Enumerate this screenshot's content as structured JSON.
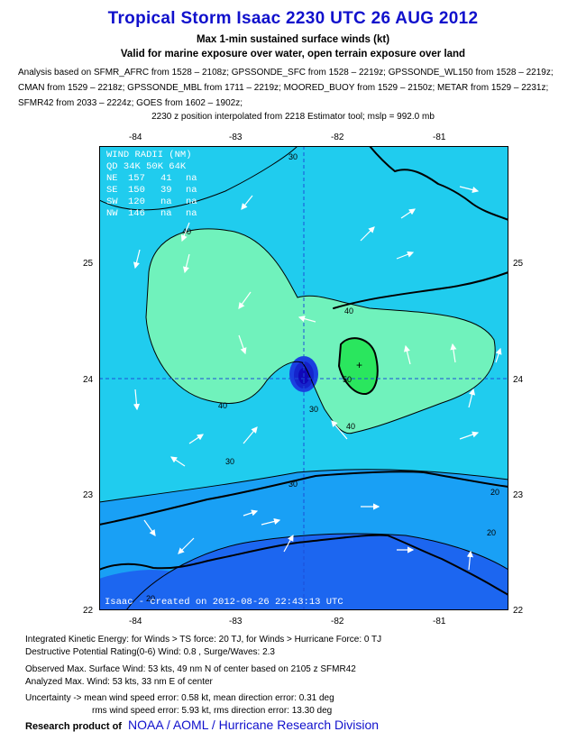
{
  "header": {
    "title": "Tropical Storm Isaac 2230 UTC 26 AUG 2012",
    "subtitle1": "Max 1-min sustained surface winds (kt)",
    "subtitle2": "Valid for marine exposure over water, open terrain exposure over land",
    "analysis_lines": [
      "Analysis based on SFMR_AFRC from 1528 – 2108z; GPSSONDE_SFC from 1528 – 2219z; GPSSONDE_WL150 from 1528 – 2219z;",
      "CMAN from 1529 – 2218z; GPSSONDE_MBL from 1711 – 2219z; MOORED_BUOY from 1529 – 2150z; METAR from 1529 – 2231z;",
      "SFMR42 from 2033 – 2224z; GOES from 1602 – 1902z;"
    ],
    "position_note": "2230 z position interpolated from 2218 Estimator tool; mslp = 992.0 mb"
  },
  "map": {
    "lon_ticks": [
      "-84",
      "-83",
      "-82",
      "-81"
    ],
    "lat_ticks": [
      "25",
      "24",
      "23",
      "22"
    ],
    "contour_labels": [
      "30",
      "40",
      "40",
      "40",
      "50",
      "40",
      "30",
      "30",
      "20",
      "30",
      "20",
      "20"
    ],
    "wind_radii": {
      "title": "WIND RADII (NM)",
      "header": "QD 34K 50K 64K",
      "rows": [
        {
          "q": "NE",
          "r34": "157",
          "r50": "41",
          "r64": "na"
        },
        {
          "q": "SE",
          "r34": "150",
          "r50": "39",
          "r64": "na"
        },
        {
          "q": "SW",
          "r34": "120",
          "r50": "na",
          "r64": "na"
        },
        {
          "q": "NW",
          "r34": "146",
          "r50": "na",
          "r64": "na"
        }
      ]
    },
    "stamp": "Isaac - created on 2012-08-26 22:43:13 UTC",
    "colors": {
      "band_10_20": "#1c66f0",
      "band_20_30": "#19a0f5",
      "band_30_40": "#20ccee",
      "band_40_50": "#70f2bc",
      "band_50_up": "#2ae65e",
      "coast": "#000000",
      "vector": "#ffffff",
      "center": "#1008b8"
    }
  },
  "footer": {
    "ike": "Integrated Kinetic Energy: for Winds > TS force: 20 TJ, for Winds > Hurricane Force: 0 TJ",
    "dpr": "Destructive Potential Rating(0-6)  Wind: 0.8 , Surge/Waves: 2.3",
    "observed": "Observed Max. Surface Wind: 53 kts, 49 nm N of center based on 2105 z SFMR42",
    "analyzed": "Analyzed Max. Wind: 53 kts, 33 nm  E of center",
    "unc1": "Uncertainty -> mean wind speed error: 0.58 kt, mean direction error: 0.31 deg",
    "unc2": "rms wind speed error: 5.93 kt, rms direction error: 13.30 deg",
    "research": "Research product of",
    "org": "NOAA  /  AOML  /  Hurricane Research Division"
  }
}
